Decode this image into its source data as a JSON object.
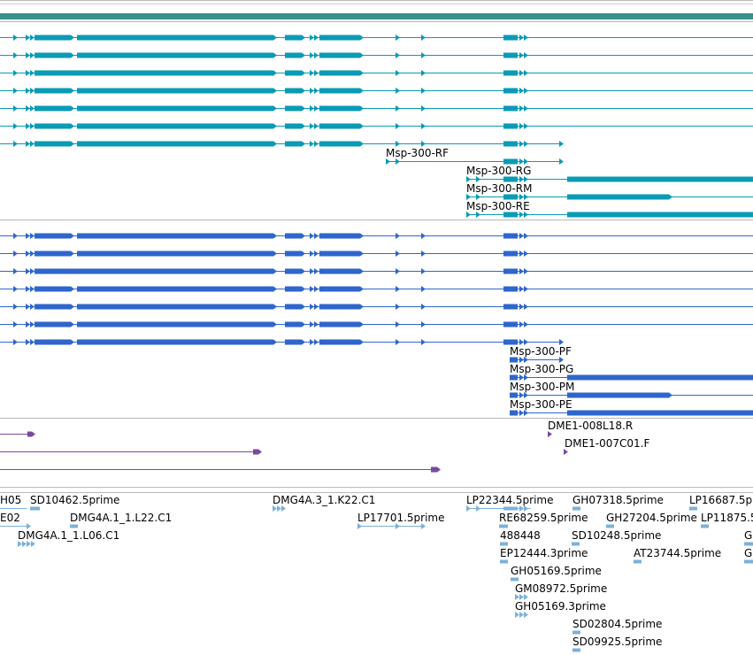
{
  "colors": {
    "teal": "#0a9bb5",
    "blue": "#2f66cc",
    "purple": "#7b4aa0",
    "est": "#7db0d8",
    "topbar": "#3a8f8c"
  },
  "transcripts": {
    "labels": [
      "Msp-300-RF",
      "Msp-300-RG",
      "Msp-300-RM",
      "Msp-300-RE"
    ]
  },
  "proteins": {
    "labels": [
      "Msp-300-PF",
      "Msp-300-PG",
      "Msp-300-PM",
      "Msp-300-PE"
    ]
  },
  "ends": {
    "labels": [
      "DME1-008L18.R",
      "DME1-007C01.F"
    ]
  },
  "ests": {
    "labels": [
      "H05",
      "SD10462.5prime",
      "E02",
      "DMG4A.1_1.L22.C1",
      "DMG4A.1_1.L06.C1",
      "DMG4A.3_1.K22.C1",
      "LP17701.5prime",
      "LP22344.5prime",
      "RE68259.5prime",
      "488448",
      "EP12444.3prime",
      "GH05169.5prime",
      "GM08972.5prime",
      "GH05169.3prime",
      "SD02804.5prime",
      "SD09925.5prime",
      "GH07318.5prime",
      "GH27204.5prime",
      "SD10248.5prime",
      "AT23744.5prime",
      "LP16687.5p",
      "LP11875.5",
      "G",
      "G"
    ]
  }
}
